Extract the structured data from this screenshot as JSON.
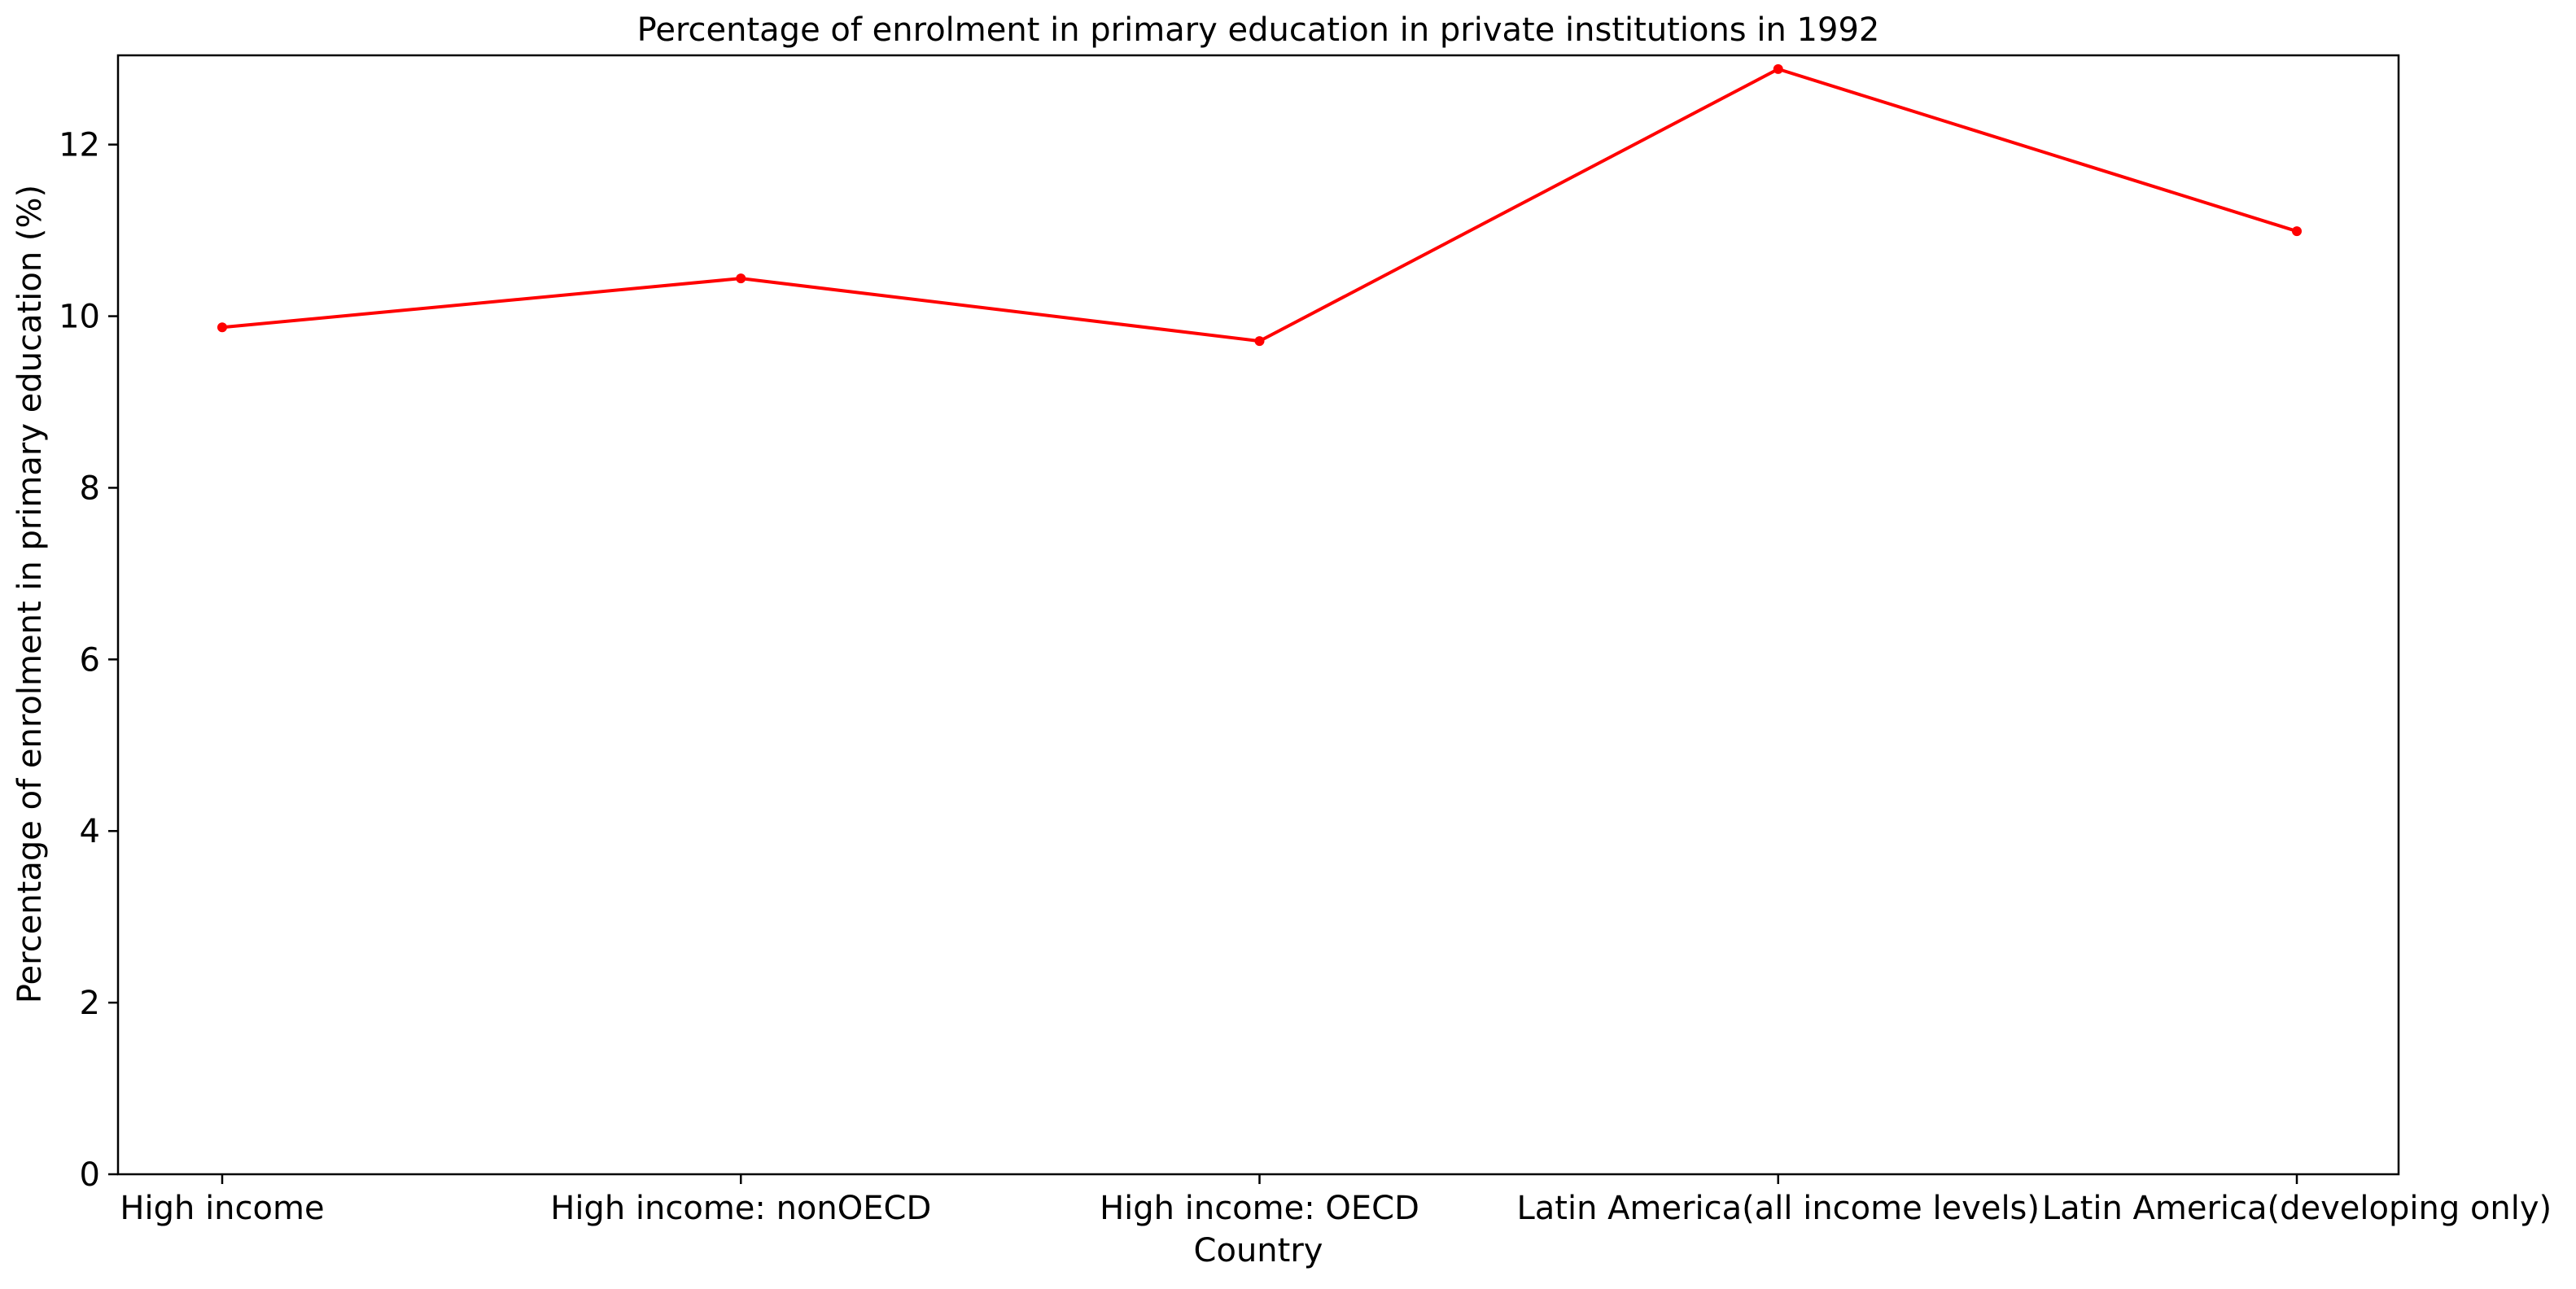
{
  "chart_data": {
    "type": "line",
    "title": "Percentage of enrolment in primary education in private institutions in 1992",
    "xlabel": "Country",
    "ylabel": "Percentage of enrolment in primary education (%)",
    "categories": [
      "High income",
      "High income: nonOECD",
      "High income: OECD",
      "Latin America(all income levels)",
      "Latin America(developing only)"
    ],
    "series": [
      {
        "values": [
          9.87,
          10.44,
          9.71,
          12.88,
          10.99
        ]
      }
    ],
    "ylim": [
      0,
      13.04
    ],
    "yticks": [
      0,
      2,
      4,
      6,
      8,
      10,
      12
    ],
    "grid": false,
    "line_color": "#ff0000"
  }
}
